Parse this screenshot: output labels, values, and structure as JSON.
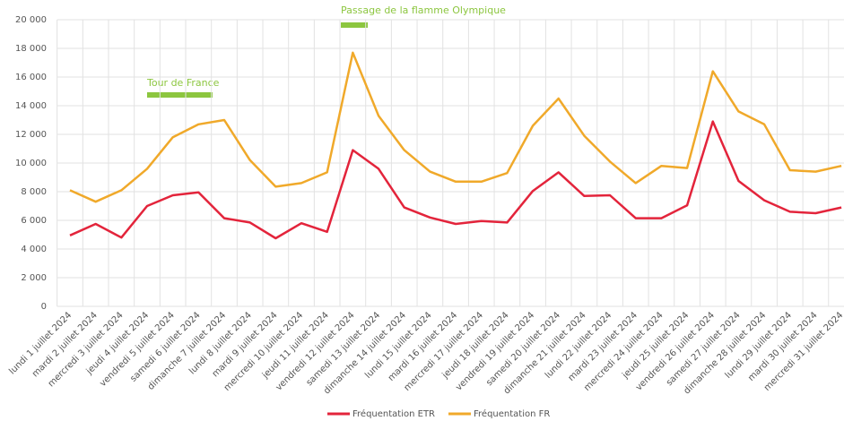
{
  "chart_data": {
    "type": "line",
    "categories": [
      "lundi 1 juillet 2024",
      "mardi 2 juillet 2024",
      "mercredi 3 juillet 2024",
      "jeudi 4 juillet 2024",
      "vendredi 5 juillet 2024",
      "samedi 6 juillet 2024",
      "dimanche 7 juillet 2024",
      "lundi 8 juillet 2024",
      "mardi 9 juillet 2024",
      "mercredi 10 juillet 2024",
      "jeudi 11 juillet 2024",
      "vendredi 12 juillet 2024",
      "samedi 13 juillet 2024",
      "dimanche 14 juillet 2024",
      "lundi 15 juillet 2024",
      "mardi 16 juillet 2024",
      "mercredi 17 juillet 2024",
      "jeudi 18 juillet 2024",
      "vendredi 19 juillet 2024",
      "samedi 20 juillet 2024",
      "dimanche 21 juillet 2024",
      "lundi 22 juillet 2024",
      "mardi 23 juillet 2024",
      "mercredi 24 juillet 2024",
      "jeudi 25 juillet 2024",
      "vendredi 26 juillet 2024",
      "samedi 27 juillet 2024",
      "dimanche 28 juillet 2024",
      "lundi 29 juillet 2024",
      "mardi 30 juillet 2024",
      "mercredi 31 juillet 2024"
    ],
    "series": [
      {
        "name": "Fréquentation ETR",
        "color": "#e3243b",
        "values": [
          4950,
          5750,
          4800,
          7000,
          7750,
          7950,
          6150,
          5850,
          4750,
          5800,
          5200,
          10900,
          9600,
          6900,
          6200,
          5750,
          5950,
          5850,
          8050,
          9350,
          7700,
          7750,
          6150,
          6150,
          7050,
          12900,
          8750,
          7400,
          6600,
          6500,
          6900
        ]
      },
      {
        "name": "Fréquentation FR",
        "color": "#f0a92a",
        "values": [
          8100,
          7300,
          8100,
          9600,
          11800,
          12700,
          13000,
          10200,
          8350,
          8600,
          9350,
          17700,
          13300,
          10900,
          9400,
          8700,
          8700,
          9300,
          12600,
          14500,
          11900,
          10100,
          8600,
          9800,
          9650,
          16400,
          13600,
          12700,
          9500,
          9400,
          9800
        ]
      }
    ],
    "ylim": [
      0,
      20000
    ],
    "yticks": [
      {
        "value": 0,
        "label": "0"
      },
      {
        "value": 2000,
        "label": "2 000"
      },
      {
        "value": 4000,
        "label": "4 000"
      },
      {
        "value": 6000,
        "label": "6 000"
      },
      {
        "value": 8000,
        "label": "8 000"
      },
      {
        "value": 10000,
        "label": "10 000"
      },
      {
        "value": 12000,
        "label": "12 000"
      },
      {
        "value": 14000,
        "label": "14 000"
      },
      {
        "value": 16000,
        "label": "16 000"
      },
      {
        "value": 18000,
        "label": "18 000"
      },
      {
        "value": 20000,
        "label": "20 000"
      }
    ],
    "grid": true,
    "annotations": [
      "Tour de France",
      "Passage de la flamme Olympique"
    ],
    "annotation_color": "#8cc63f"
  }
}
